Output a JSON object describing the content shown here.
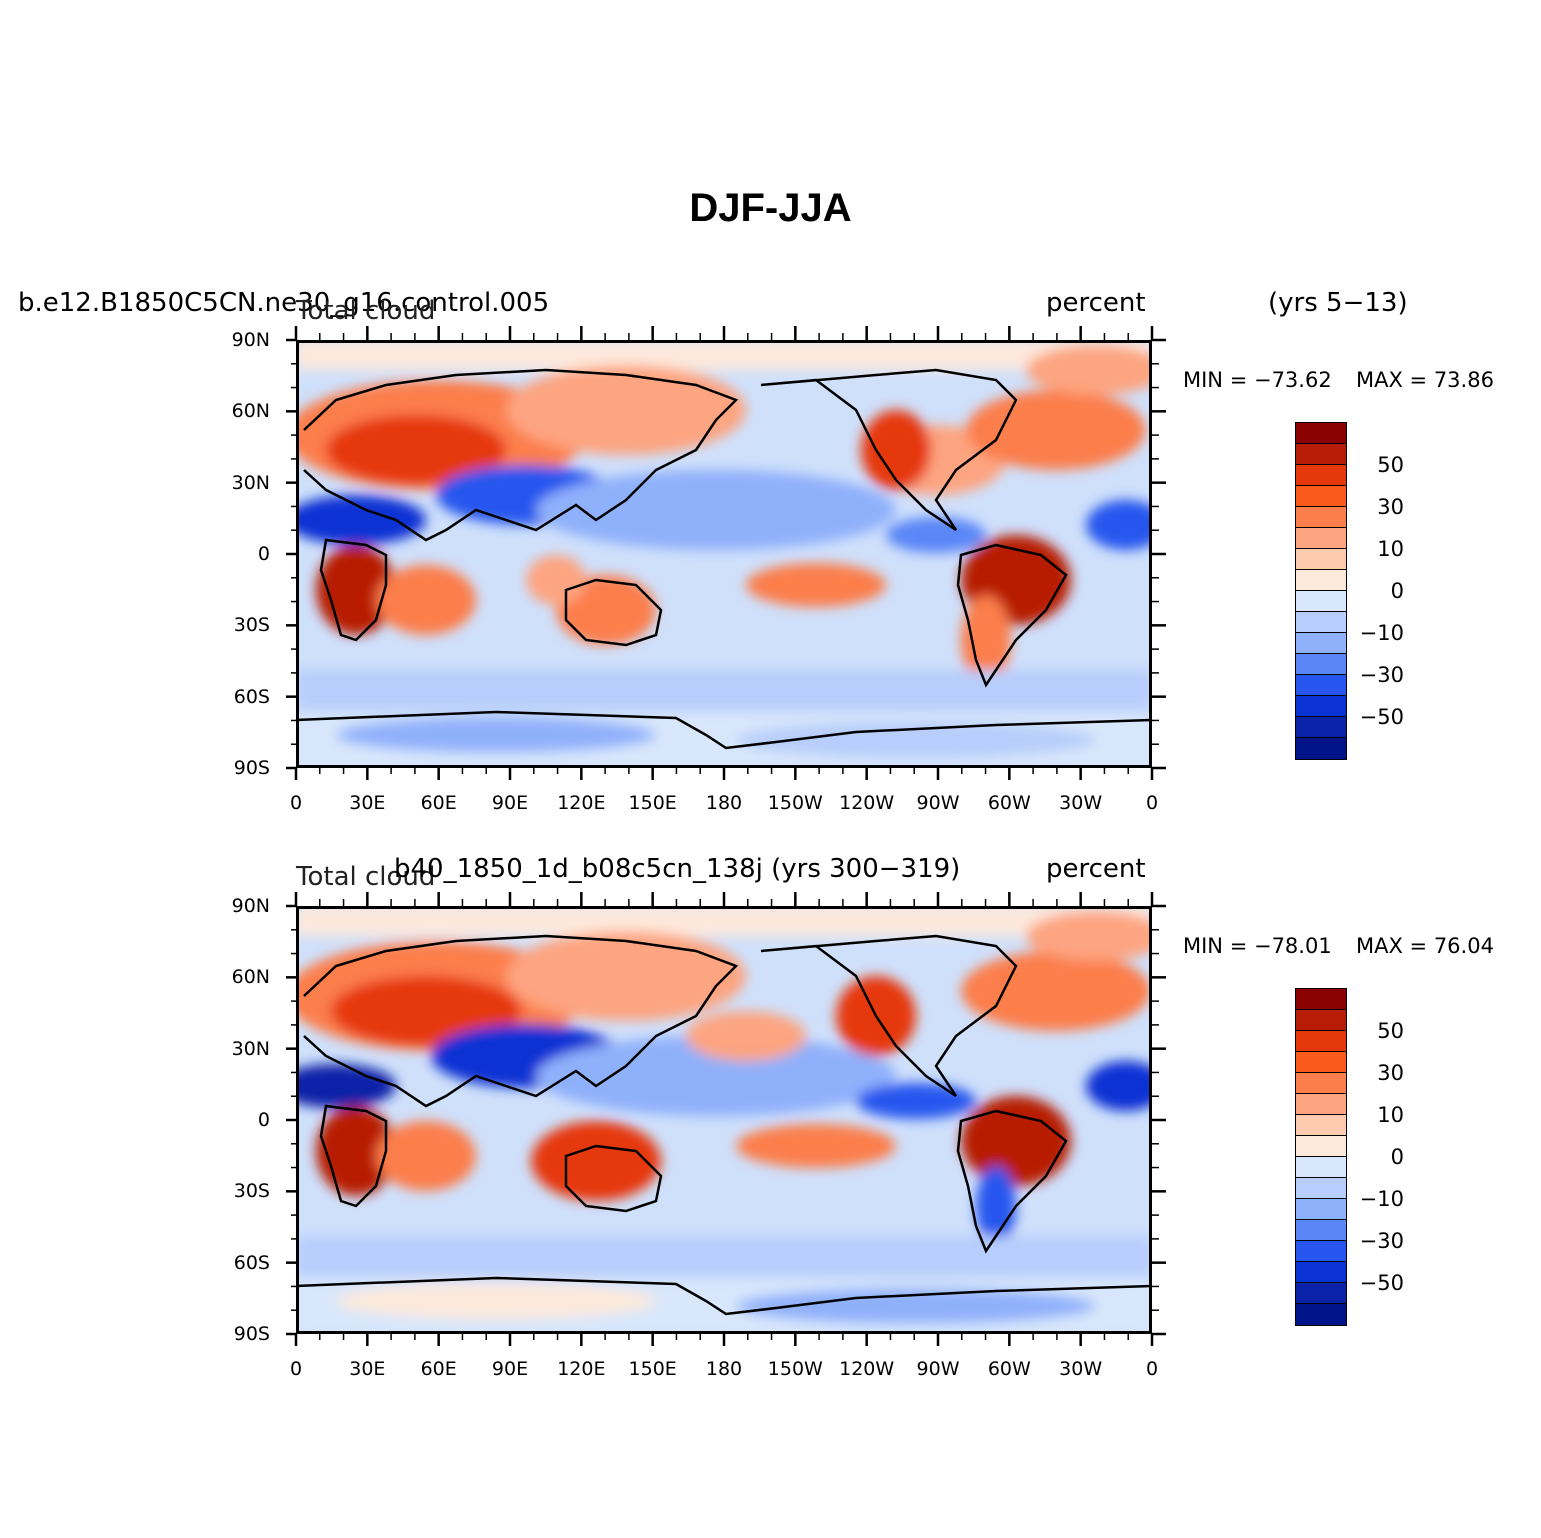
{
  "title": "DJF-JJA",
  "panels": [
    {
      "case_name": "b.e12.B1850C5CN.ne30_g16.control.005",
      "years": "(yrs 5−13)",
      "variable": "Total cloud",
      "units": "percent",
      "min_label": "MIN = −73.62",
      "max_label": "MAX =   73.86"
    },
    {
      "case_name": "b40_1850_1d_b08c5cn_138j (yrs 300−319)",
      "years": "",
      "variable": "Total cloud",
      "units": "percent",
      "min_label": "MIN = −78.01",
      "max_label": "MAX =   76.04"
    }
  ],
  "colorbar": {
    "colors": [
      "#8b0000",
      "#b71c06",
      "#e6390b",
      "#fb5a1d",
      "#fc7e4b",
      "#fda480",
      "#fdcbb0",
      "#fde9dc",
      "#d8e7fb",
      "#b7cdfb",
      "#8fb0fb",
      "#5a86f8",
      "#2756ee",
      "#0a32d4",
      "#0a22a8",
      "#00148a"
    ],
    "labels": [
      "50",
      "30",
      "10",
      "0",
      "−10",
      "−30",
      "−50"
    ]
  },
  "lat_ticks": [
    "90N",
    "60N",
    "30N",
    "0",
    "30S",
    "60S",
    "90S"
  ],
  "lon_ticks": [
    "0",
    "30E",
    "60E",
    "90E",
    "120E",
    "150E",
    "180",
    "150W",
    "120W",
    "90W",
    "60W",
    "30W",
    "0"
  ]
}
